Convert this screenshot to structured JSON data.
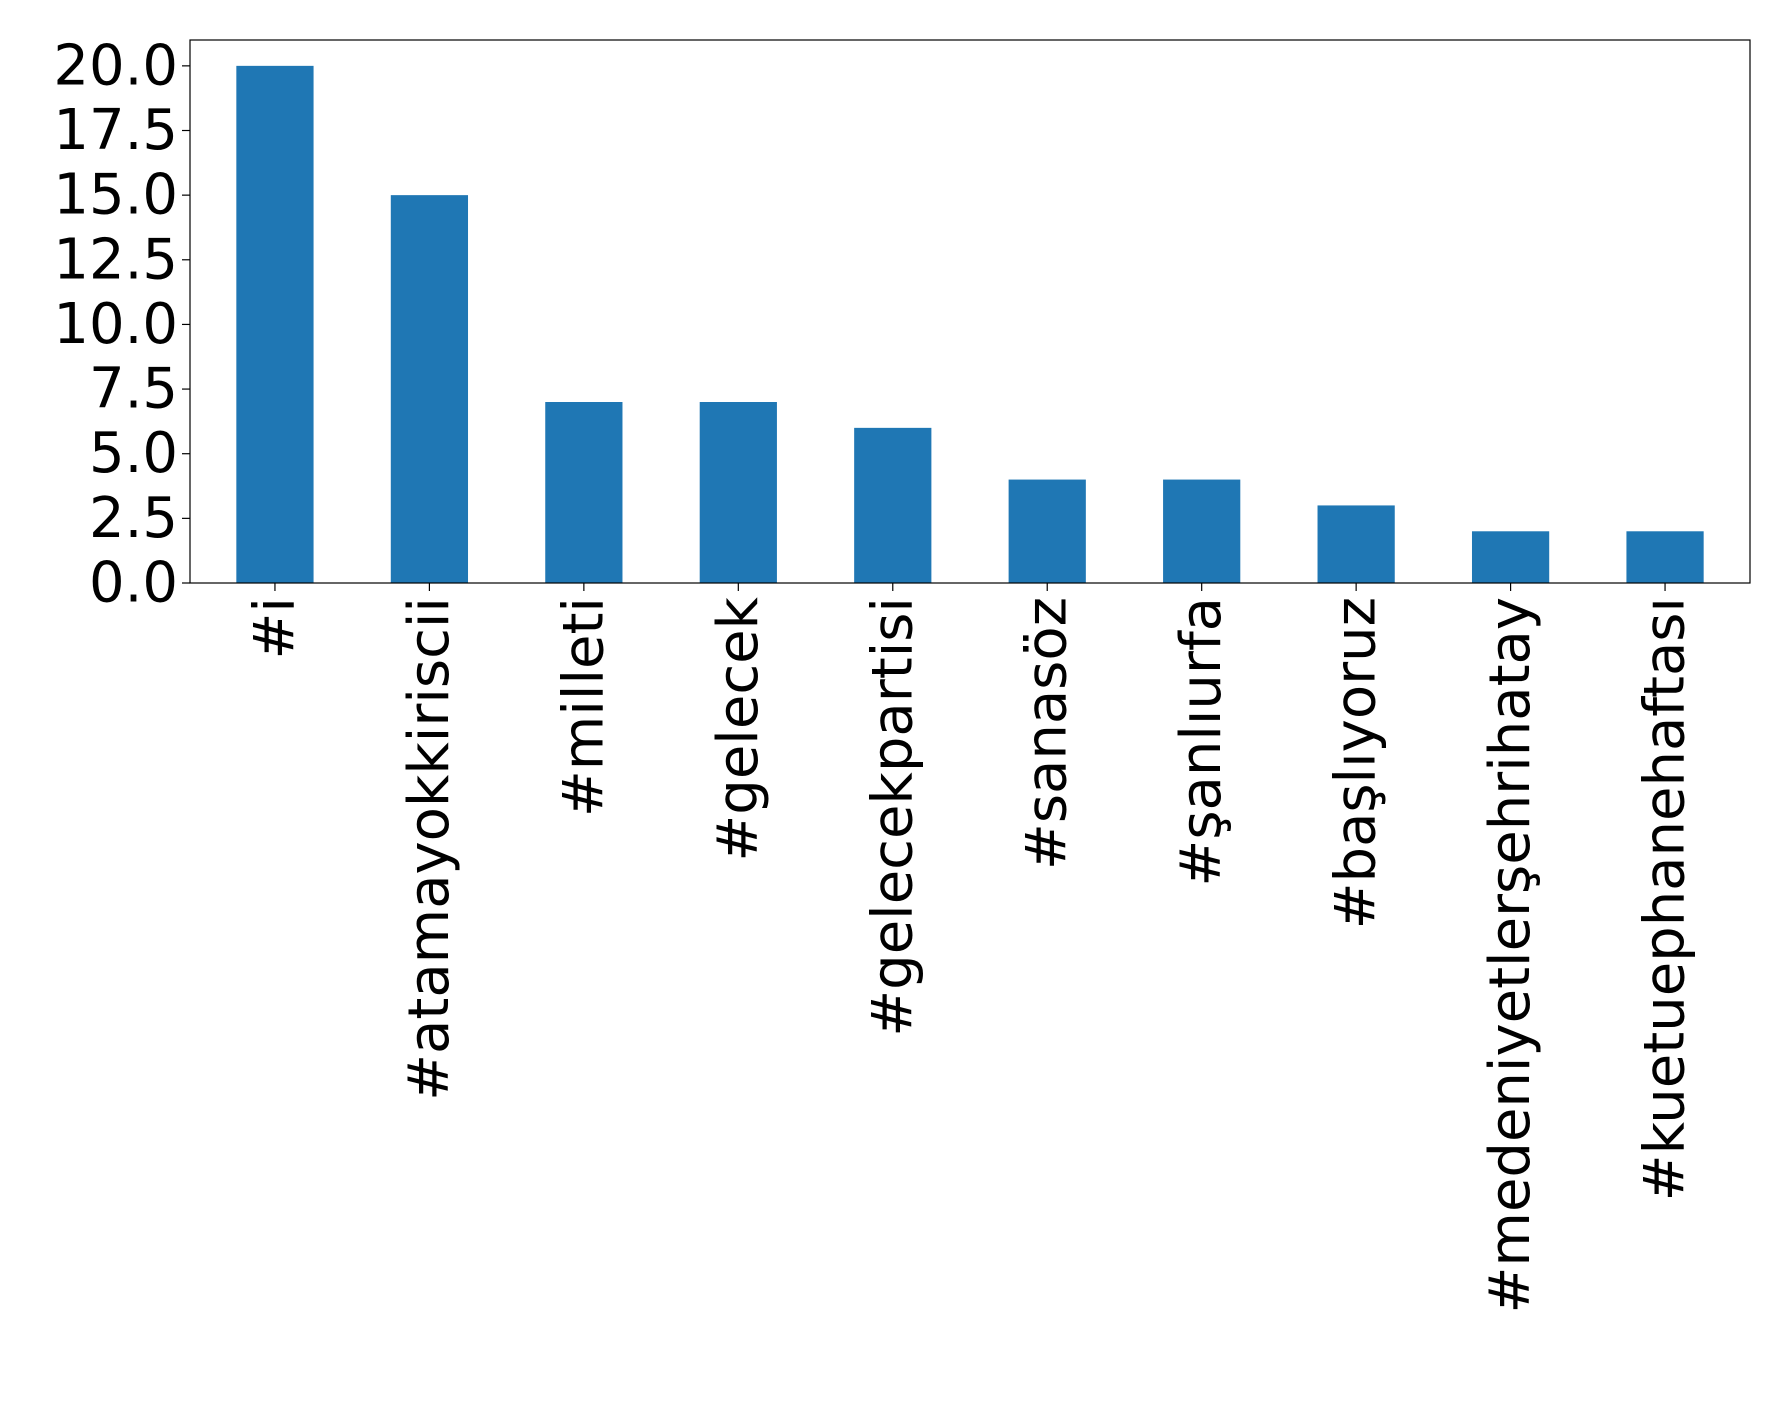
{
  "chart_data": {
    "type": "bar",
    "title": "",
    "xlabel": "",
    "ylabel": "",
    "categories": [
      "#i",
      "#atamayokkiriscii",
      "#milleti",
      "#gelecek",
      "#gelecekpartisi",
      "#sanasöz",
      "#şanlıurfa",
      "#başlıyoruz",
      "#medeniyetlerşehrihatay",
      "#kuetuephanehaftası"
    ],
    "values": [
      20,
      15,
      7,
      7,
      6,
      4,
      4,
      3,
      2,
      2
    ],
    "ylim": [
      0,
      21
    ],
    "yticks": [
      0.0,
      2.5,
      5.0,
      7.5,
      10.0,
      12.5,
      15.0,
      17.5,
      20.0
    ],
    "ytick_labels": [
      "0.0",
      "2.5",
      "5.0",
      "7.5",
      "10.0",
      "12.5",
      "15.0",
      "17.5",
      "20.0"
    ],
    "bar_color": "#1f77b4",
    "grid": false,
    "legend": "none",
    "xtick_rotation": "vertical"
  }
}
